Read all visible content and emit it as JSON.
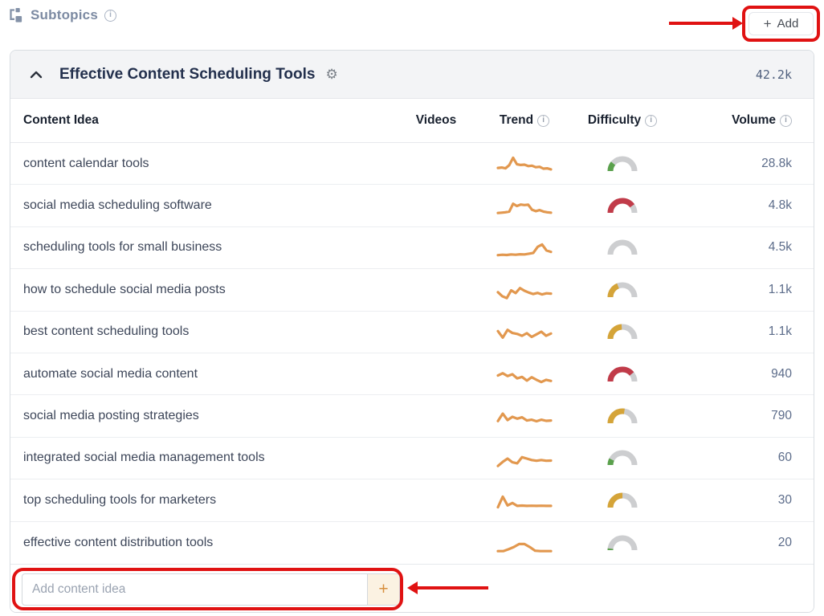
{
  "header": {
    "subtopics_label": "Subtopics",
    "add_button_label": "Add",
    "add_button_plus": "+"
  },
  "card": {
    "title": "Effective Content Scheduling Tools",
    "total_volume": "42.2k",
    "columns": {
      "content_idea": "Content Idea",
      "videos": "Videos",
      "trend": "Trend",
      "difficulty": "Difficulty",
      "volume": "Volume"
    },
    "rows": [
      {
        "content_idea": "content calendar tools",
        "volume": "28.8k",
        "difficulty": {
          "color": "green",
          "fraction": 0.22
        },
        "trend": [
          30,
          32,
          28,
          45,
          85,
          50,
          46,
          48,
          40,
          42,
          34,
          36,
          26,
          28,
          22
        ]
      },
      {
        "content_idea": "social media scheduling software",
        "volume": "4.8k",
        "difficulty": {
          "color": "red",
          "fraction": 0.8
        },
        "trend": [
          12,
          14,
          16,
          20,
          62,
          50,
          58,
          55,
          57,
          30,
          22,
          28,
          20,
          16,
          14
        ]
      },
      {
        "content_idea": "scheduling tools for small business",
        "volume": "4.5k",
        "difficulty": {
          "color": "none",
          "fraction": 0
        },
        "trend": [
          10,
          12,
          11,
          14,
          12,
          15,
          14,
          18,
          22,
          55,
          68,
          35,
          28
        ]
      },
      {
        "content_idea": "how to schedule social media posts",
        "volume": "1.1k",
        "difficulty": {
          "color": "yellow",
          "fraction": 0.38
        },
        "trend": [
          40,
          18,
          8,
          50,
          35,
          62,
          48,
          38,
          30,
          36,
          28,
          34,
          32
        ]
      },
      {
        "content_idea": "best content scheduling tools",
        "volume": "1.1k",
        "difficulty": {
          "color": "yellow",
          "fraction": 0.48
        },
        "trend": [
          55,
          20,
          62,
          45,
          40,
          30,
          44,
          24,
          38,
          52,
          30,
          42
        ]
      },
      {
        "content_idea": "automate social media content",
        "volume": "940",
        "difficulty": {
          "color": "red",
          "fraction": 0.78
        },
        "trend": [
          45,
          58,
          42,
          52,
          30,
          38,
          18,
          36,
          22,
          10,
          22,
          16
        ]
      },
      {
        "content_idea": "social media posting strategies",
        "volume": "790",
        "difficulty": {
          "color": "yellow",
          "fraction": 0.55
        },
        "trend": [
          25,
          65,
          30,
          48,
          38,
          45,
          28,
          32,
          24,
          32,
          26,
          28
        ]
      },
      {
        "content_idea": "integrated social media management tools",
        "volume": "60",
        "difficulty": {
          "color": "green",
          "fraction": 0.15
        },
        "trend": [
          8,
          30,
          48,
          28,
          22,
          55,
          48,
          40,
          36,
          40,
          36,
          37
        ]
      },
      {
        "content_idea": "top scheduling tools for marketers",
        "volume": "30",
        "difficulty": {
          "color": "yellow",
          "fraction": 0.5
        },
        "trend": [
          15,
          72,
          25,
          38,
          22,
          24,
          22,
          23,
          22,
          23,
          22,
          22
        ]
      },
      {
        "content_idea": "effective content distribution tools",
        "volume": "20",
        "difficulty": {
          "color": "green",
          "fraction": 0.04
        },
        "trend": [
          8,
          8,
          18,
          30,
          46,
          46,
          30,
          10,
          8,
          8,
          8
        ]
      }
    ],
    "footer": {
      "placeholder": "Add content idea",
      "add_symbol": "+"
    }
  },
  "colors": {
    "annotation_red": "#e01212",
    "sparkline_orange": "#e2984f",
    "gauge_track": "#cdced0",
    "difficulty_green": "#5aa14c",
    "difficulty_yellow": "#d5a438",
    "difficulty_red": "#c13b49"
  }
}
